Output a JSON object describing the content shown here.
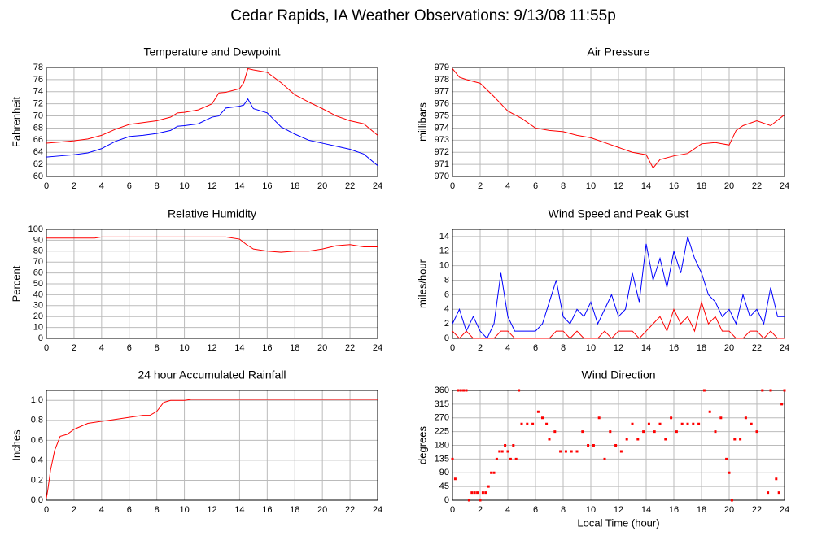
{
  "title": "Cedar Rapids, IA Weather Observations: 9/13/08 11:55p",
  "chart_data": [
    {
      "type": "line",
      "title": "Temperature and Dewpoint",
      "ylabel": "Fahrenheit",
      "x": [
        0,
        1,
        2,
        3,
        4,
        5,
        6,
        7,
        8,
        9,
        9.5,
        10,
        11,
        12,
        12.5,
        13,
        14,
        14.3,
        14.6,
        15,
        16,
        17,
        18,
        19,
        20,
        21,
        22,
        23,
        24
      ],
      "series": [
        {
          "color": "#ff0000",
          "values": [
            65.5,
            65.7,
            65.9,
            66.2,
            66.8,
            67.8,
            68.6,
            68.9,
            69.2,
            69.8,
            70.5,
            70.6,
            71.0,
            72.0,
            73.8,
            73.9,
            74.5,
            75.5,
            77.8,
            77.6,
            77.2,
            75.5,
            73.5,
            72.3,
            71.2,
            70.0,
            69.2,
            68.7,
            66.8
          ]
        },
        {
          "color": "#0000ff",
          "values": [
            63.2,
            63.4,
            63.6,
            63.9,
            64.6,
            65.8,
            66.6,
            66.8,
            67.1,
            67.6,
            68.3,
            68.4,
            68.7,
            69.8,
            70.0,
            71.3,
            71.6,
            71.8,
            72.8,
            71.2,
            70.5,
            68.2,
            67.0,
            66.0,
            65.5,
            65.0,
            64.5,
            63.7,
            61.8
          ]
        }
      ],
      "xlim": [
        0,
        24
      ],
      "xticks": [
        0,
        2,
        4,
        6,
        8,
        10,
        12,
        14,
        16,
        18,
        20,
        22,
        24
      ],
      "ylim": [
        60,
        78
      ],
      "yticks": [
        60,
        62,
        64,
        66,
        68,
        70,
        72,
        74,
        76,
        78
      ],
      "grid": true
    },
    {
      "type": "line",
      "title": "Air Pressure",
      "ylabel": "millibars",
      "x": [
        0,
        0.5,
        1,
        2,
        3,
        4,
        5,
        6,
        7,
        8,
        9,
        10,
        11,
        12,
        13,
        14,
        14.5,
        15,
        16,
        17,
        18,
        19,
        20,
        20.5,
        21,
        22,
        23,
        24
      ],
      "series": [
        {
          "color": "#ff0000",
          "values": [
            978.9,
            978.2,
            978.0,
            977.7,
            976.6,
            975.4,
            974.8,
            974.0,
            973.8,
            973.7,
            973.4,
            973.2,
            972.8,
            972.4,
            972.0,
            971.8,
            970.7,
            971.4,
            971.7,
            971.9,
            972.7,
            972.8,
            972.6,
            973.8,
            974.2,
            974.6,
            974.2,
            975.1
          ]
        }
      ],
      "xlim": [
        0,
        24
      ],
      "xticks": [
        0,
        2,
        4,
        6,
        8,
        10,
        12,
        14,
        16,
        18,
        20,
        22,
        24
      ],
      "ylim": [
        970,
        979
      ],
      "yticks": [
        970,
        971,
        972,
        973,
        974,
        975,
        976,
        977,
        978,
        979
      ],
      "grid": true
    },
    {
      "type": "line",
      "title": "Relative Humidity",
      "ylabel": "Percent",
      "x": [
        0,
        3.5,
        4,
        12,
        13,
        14,
        14.5,
        15,
        16,
        17,
        18,
        19,
        20,
        21,
        22,
        23,
        24
      ],
      "series": [
        {
          "color": "#ff0000",
          "values": [
            92,
            92,
            93,
            93,
            93,
            91,
            86,
            82,
            80,
            79,
            80,
            80,
            82,
            85,
            86,
            84,
            84
          ]
        }
      ],
      "xlim": [
        0,
        24
      ],
      "xticks": [
        0,
        2,
        4,
        6,
        8,
        10,
        12,
        14,
        16,
        18,
        20,
        22,
        24
      ],
      "ylim": [
        0,
        100
      ],
      "yticks": [
        0,
        10,
        20,
        30,
        40,
        50,
        60,
        70,
        80,
        90,
        100
      ],
      "grid": true
    },
    {
      "type": "line",
      "title": "Wind Speed and Peak Gust",
      "ylabel": "miles/hour",
      "x": [
        0,
        0.5,
        1,
        1.5,
        2,
        2.5,
        3,
        3.5,
        4,
        4.5,
        5,
        5.5,
        6,
        6.5,
        7,
        7.5,
        8,
        8.5,
        9,
        9.5,
        10,
        10.5,
        11,
        11.5,
        12,
        12.5,
        13,
        13.5,
        14,
        14.5,
        15,
        15.5,
        16,
        16.5,
        17,
        17.5,
        18,
        18.5,
        19,
        19.5,
        20,
        20.5,
        21,
        21.5,
        22,
        22.5,
        23,
        23.5,
        24
      ],
      "series": [
        {
          "color": "#0000ff",
          "values": [
            2,
            4,
            1,
            3,
            1,
            0,
            2,
            9,
            3,
            1,
            1,
            1,
            1,
            2,
            5,
            8,
            3,
            2,
            4,
            3,
            5,
            2,
            4,
            6,
            3,
            4,
            9,
            5,
            13,
            8,
            11,
            7,
            12,
            9,
            14,
            11,
            9,
            6,
            5,
            3,
            4,
            2,
            6,
            3,
            4,
            2,
            7,
            3,
            3
          ]
        },
        {
          "color": "#ff0000",
          "values": [
            1,
            0,
            1,
            0,
            0,
            0,
            0,
            1,
            1,
            0,
            0,
            0,
            0,
            0,
            0,
            1,
            1,
            0,
            1,
            0,
            0,
            0,
            1,
            0,
            1,
            1,
            1,
            0,
            1,
            2,
            3,
            1,
            4,
            2,
            3,
            1,
            5,
            2,
            3,
            1,
            1,
            0,
            0,
            1,
            1,
            0,
            1,
            0,
            0
          ]
        }
      ],
      "xlim": [
        0,
        24
      ],
      "xticks": [
        0,
        2,
        4,
        6,
        8,
        10,
        12,
        14,
        16,
        18,
        20,
        22,
        24
      ],
      "ylim": [
        0,
        15
      ],
      "yticks": [
        0,
        2,
        4,
        6,
        8,
        10,
        12,
        14
      ],
      "grid": true
    },
    {
      "type": "line",
      "title": "24 hour Accumulated Rainfall",
      "ylabel": "Inches",
      "x": [
        0,
        0.1,
        0.3,
        0.6,
        1,
        1.5,
        2,
        3,
        4,
        5,
        6,
        7,
        7.5,
        8,
        8.5,
        9,
        10,
        10.5,
        12,
        24
      ],
      "series": [
        {
          "color": "#ff0000",
          "values": [
            0.02,
            0.1,
            0.3,
            0.5,
            0.64,
            0.66,
            0.71,
            0.77,
            0.79,
            0.81,
            0.83,
            0.85,
            0.85,
            0.89,
            0.98,
            1.0,
            1.0,
            1.01,
            1.01,
            1.01
          ]
        }
      ],
      "xlim": [
        0,
        24
      ],
      "xticks": [
        0,
        2,
        4,
        6,
        8,
        10,
        12,
        14,
        16,
        18,
        20,
        22,
        24
      ],
      "ylim": [
        0,
        1.1
      ],
      "yticks": [
        {
          "value": 0,
          "label": "0.0"
        },
        0.2,
        0.4,
        0.6,
        0.8,
        {
          "value": 1,
          "label": "1.0"
        }
      ],
      "grid": true
    },
    {
      "type": "scatter",
      "title": "Wind Direction",
      "ylabel": "degrees",
      "xlabel": "Local Time (hour)",
      "color": "#ff0000",
      "x": [
        0,
        0.2,
        0.4,
        0.6,
        0.8,
        1,
        1.2,
        1.4,
        1.6,
        1.8,
        2,
        2.2,
        2.4,
        2.6,
        2.8,
        3,
        3.2,
        3.4,
        3.6,
        3.8,
        4,
        4.2,
        4.4,
        4.6,
        4.8,
        5,
        5.4,
        5.8,
        6.2,
        6.5,
        6.8,
        7,
        7.4,
        7.8,
        8.2,
        8.6,
        9,
        9.4,
        9.8,
        10.2,
        10.6,
        11,
        11.4,
        11.8,
        12.2,
        12.6,
        13,
        13.4,
        13.8,
        14.2,
        14.6,
        15,
        15.4,
        15.8,
        16.2,
        16.6,
        17,
        17.4,
        17.8,
        18.2,
        18.6,
        19,
        19.4,
        19.8,
        20,
        20.2,
        20.4,
        20.8,
        21.2,
        21.6,
        22,
        22.4,
        22.8,
        23,
        23.4,
        23.6,
        23.8,
        24
      ],
      "y": [
        135,
        70,
        360,
        360,
        360,
        360,
        0,
        25,
        25,
        25,
        0,
        25,
        25,
        45,
        90,
        90,
        135,
        160,
        160,
        180,
        160,
        135,
        180,
        135,
        360,
        250,
        250,
        250,
        290,
        270,
        250,
        200,
        225,
        160,
        160,
        160,
        160,
        225,
        180,
        180,
        270,
        135,
        225,
        180,
        160,
        200,
        250,
        200,
        225,
        250,
        225,
        250,
        200,
        270,
        225,
        250,
        250,
        250,
        250,
        360,
        290,
        225,
        270,
        135,
        90,
        0,
        200,
        200,
        270,
        250,
        225,
        360,
        25,
        360,
        70,
        25,
        315,
        360
      ],
      "xlim": [
        0,
        24
      ],
      "xticks": [
        0,
        2,
        4,
        6,
        8,
        10,
        12,
        14,
        16,
        18,
        20,
        22,
        24
      ],
      "ylim": [
        0,
        360
      ],
      "yticks": [
        0,
        45,
        90,
        135,
        180,
        225,
        270,
        315,
        360
      ],
      "grid": true
    }
  ]
}
